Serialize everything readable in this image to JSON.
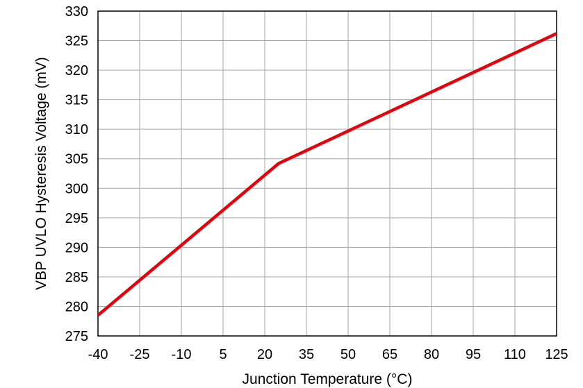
{
  "chart_data": {
    "type": "line",
    "title": "",
    "xlabel": "Junction Temperature (°C)",
    "ylabel": "VBP UVLO Hysteresis Voltage (mV)",
    "xlim": [
      -40,
      125
    ],
    "ylim": [
      275,
      330
    ],
    "xticks": [
      -40,
      -25,
      -10,
      5,
      20,
      35,
      50,
      65,
      80,
      95,
      110,
      125
    ],
    "yticks": [
      275,
      280,
      285,
      290,
      295,
      300,
      305,
      310,
      315,
      320,
      325,
      330
    ],
    "grid": true,
    "legend": "none",
    "series": [
      {
        "color": "#e8000b",
        "points": [
          {
            "x": -40,
            "y": 278.5
          },
          {
            "x": 25,
            "y": 304.2
          },
          {
            "x": 125,
            "y": 326.2
          }
        ]
      }
    ]
  }
}
